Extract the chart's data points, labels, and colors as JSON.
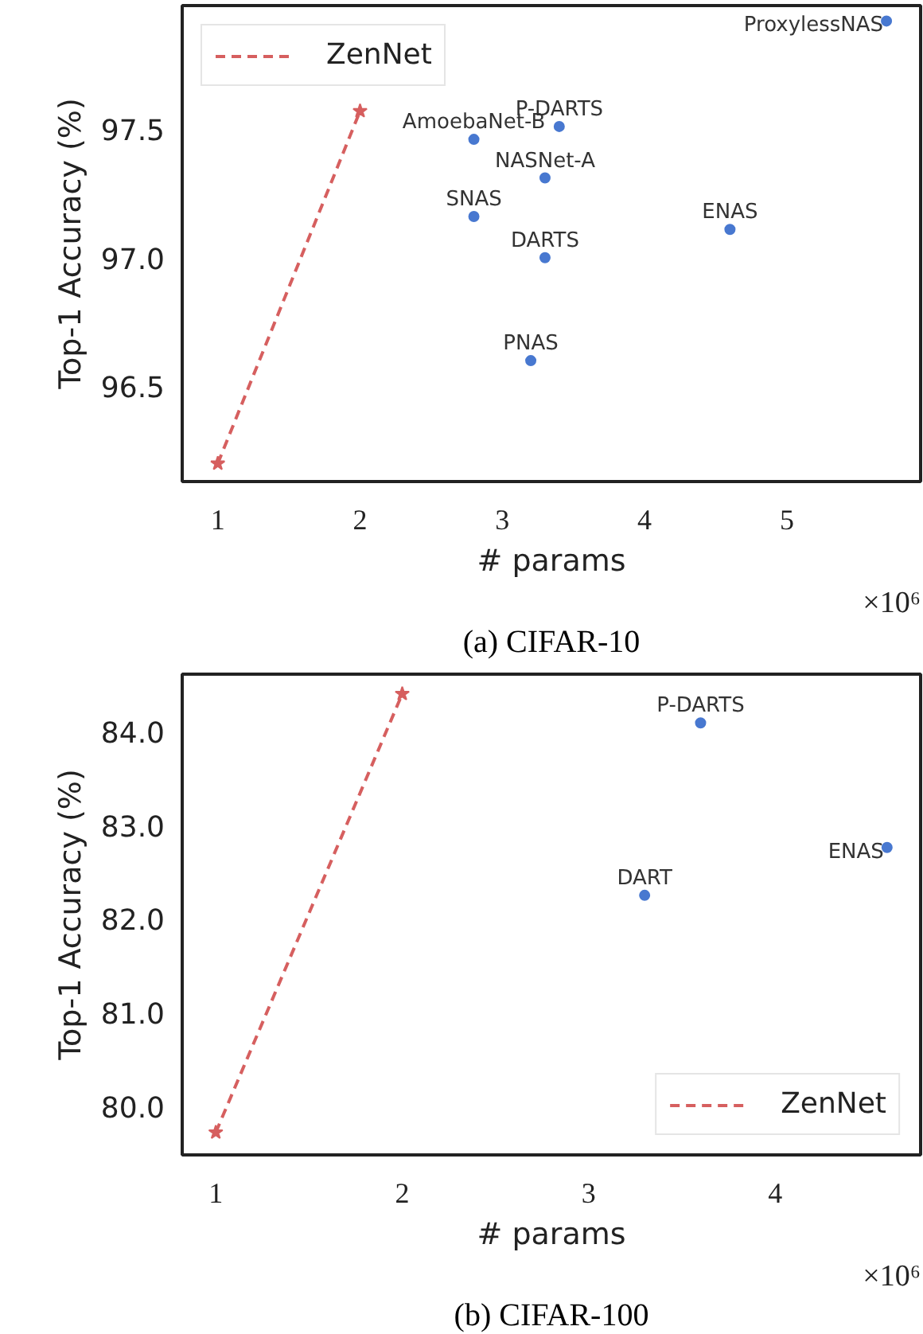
{
  "chart_data": [
    {
      "type": "scatter",
      "title": "(a) CIFAR-10",
      "xlabel": "# params",
      "ylabel": "Top-1 Accuracy (%)",
      "xlim": [
        0.75,
        5.94
      ],
      "ylim": [
        96.13,
        97.98
      ],
      "xticks": [
        1,
        2,
        3,
        4,
        5
      ],
      "yticks": [
        96.5,
        {
          "value": 97,
          "label": "97.0"
        },
        97.5
      ],
      "grid": false,
      "legend": "top left",
      "series": [
        {
          "name": "ZenNet",
          "type": "line",
          "color": "#d65f5f",
          "line_style": "dashed",
          "marker": "star",
          "x": [
            1,
            2
          ],
          "values": [
            96.2,
            97.57
          ]
        },
        {
          "type": "scatter",
          "color": "#4878d0",
          "marker": "circle",
          "x": [
            5.7,
            2.8,
            3.4,
            3.3,
            2.8,
            3.3,
            4.6,
            3.2
          ],
          "values": [
            97.92,
            97.46,
            97.51,
            97.31,
            97.16,
            97.0,
            97.11,
            96.6
          ]
        }
      ],
      "annotations": [
        {
          "text": "ProxylessNAS",
          "x": 5.7,
          "y": 97.92
        },
        {
          "text": "AmoebaNet-B",
          "x": 2.8,
          "y": 97.46
        },
        {
          "text": "P-DARTS",
          "x": 3.4,
          "y": 97.51
        },
        {
          "text": "NASNet-A",
          "x": 3.3,
          "y": 97.31
        },
        {
          "text": "SNAS",
          "x": 2.8,
          "y": 97.16
        },
        {
          "text": "DARTS",
          "x": 3.3,
          "y": 97.0
        },
        {
          "text": "ENAS",
          "x": 4.6,
          "y": 97.11
        },
        {
          "text": "PNAS",
          "x": 3.2,
          "y": 96.6
        },
        "×10⁶"
      ]
    },
    {
      "type": "scatter",
      "title": "(b) CIFAR-100",
      "xlabel": "# params",
      "ylabel": "Top-1 Accuracy (%)",
      "xlim": [
        0.82,
        4.78
      ],
      "ylim": [
        79.48,
        84.61
      ],
      "xticks": [
        1,
        2,
        3,
        4
      ],
      "yticks": [
        {
          "value": 80,
          "label": "80.0"
        },
        {
          "value": 81,
          "label": "81.0"
        },
        {
          "value": 82,
          "label": "82.0"
        },
        {
          "value": 83,
          "label": "83.0"
        },
        {
          "value": 84,
          "label": "84.0"
        }
      ],
      "grid": false,
      "legend": "bottom right",
      "series": [
        {
          "name": "ZenNet",
          "type": "line",
          "color": "#d65f5f",
          "line_style": "dashed",
          "marker": "star",
          "x": [
            1,
            2
          ],
          "values": [
            79.72,
            84.4
          ]
        },
        {
          "type": "scatter",
          "color": "#4878d0",
          "marker": "circle",
          "x": [
            3.6,
            4.6,
            3.3
          ],
          "values": [
            84.09,
            82.76,
            82.25
          ]
        }
      ],
      "annotations": [
        {
          "text": "P-DARTS",
          "x": 3.6,
          "y": 84.09
        },
        {
          "text": "ENAS",
          "x": 4.6,
          "y": 82.76
        },
        {
          "text": "DART",
          "x": 3.3,
          "y": 82.25
        },
        "×10⁶"
      ]
    }
  ]
}
